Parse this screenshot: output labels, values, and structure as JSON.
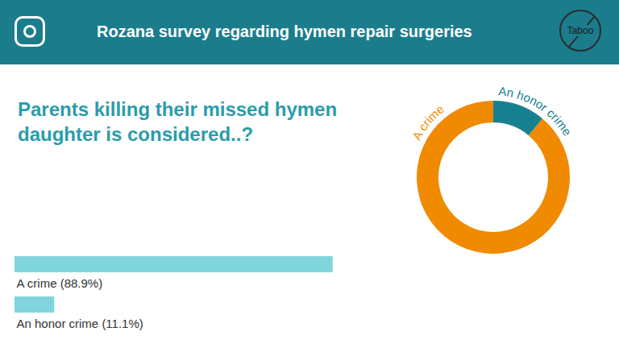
{
  "header": {
    "title": "Rozana survey regarding hymen repair surgeries",
    "badge": "Taboo"
  },
  "chart_data": [
    {
      "type": "bar",
      "title": "Parents killing their missed hymen daughter is considered..?",
      "orientation": "horizontal",
      "categories": [
        "A crime",
        "An honor crime"
      ],
      "values": [
        88.9,
        11.1
      ],
      "value_labels": [
        "A crime (88.9%)",
        "An honor crime (11.1%)"
      ],
      "data_labels": true,
      "color": "#80d4dc",
      "xlim": [
        0,
        100
      ],
      "tick_labels": false
    },
    {
      "type": "donut",
      "categories": [
        "A crime",
        "An honor crime"
      ],
      "values": [
        88.9,
        11.1
      ],
      "colors": [
        "#f08a00",
        "#17808f"
      ]
    }
  ]
}
